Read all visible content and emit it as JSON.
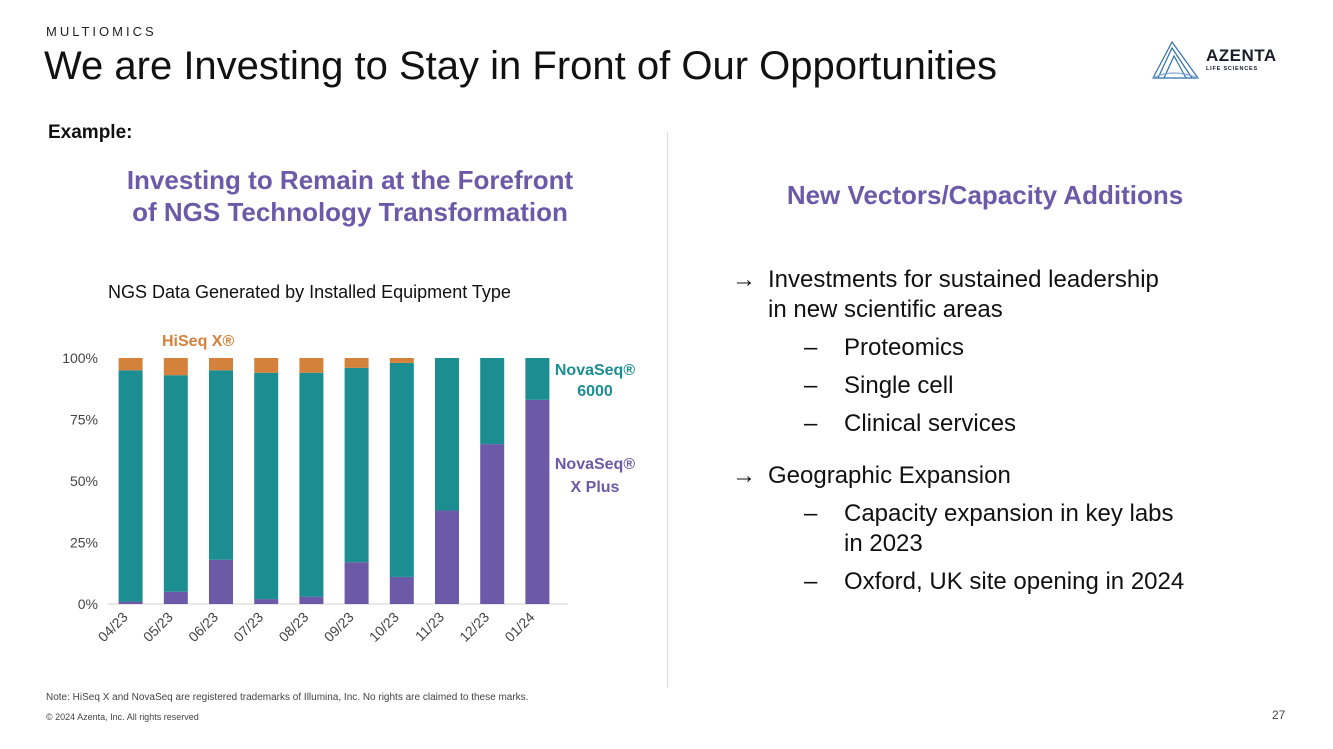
{
  "header": {
    "section": "MULTIOMICS",
    "title": "We are Investing to Stay in Front of Our Opportunities",
    "logo_text": "AZENTA",
    "logo_sub": "LIFE SCIENCES"
  },
  "left": {
    "example_label": "Example:",
    "heading_line1": "Investing to Remain at the Forefront",
    "heading_line2": "of NGS Technology Transformation"
  },
  "right": {
    "heading": "New Vectors/Capacity Additions",
    "arrow_glyph": "→",
    "dash_glyph": "–",
    "bullet1": {
      "line1": "Investments for sustained leadership",
      "line2": "in new scientific areas"
    },
    "sub1": [
      "Proteomics",
      "Single cell",
      "Clinical services"
    ],
    "bullet2": "Geographic Expansion",
    "sub2": [
      {
        "line1": "Capacity expansion in key labs",
        "line2": "in 2023"
      },
      {
        "line1": "Oxford, UK site opening in 2024",
        "line2": ""
      }
    ]
  },
  "footer": {
    "note": "Note: HiSeq X and NovaSeq are registered trademarks of Illumina, Inc.  No rights are claimed to these marks.",
    "copyright": "© 2024 Azenta, Inc.  All rights reserved",
    "page_number": "27"
  },
  "colors": {
    "title_purple": "#6c5aa8",
    "hiseq": "#d4813b",
    "novaseq6000": "#1c8e92",
    "novaseqx": "#6c5aa8"
  },
  "chart_data": {
    "type": "bar",
    "stacked": true,
    "title": "NGS Data Generated by Installed Equipment Type",
    "categories": [
      "04/23",
      "05/23",
      "06/23",
      "07/23",
      "08/23",
      "09/23",
      "10/23",
      "11/23",
      "12/23",
      "01/24"
    ],
    "series": [
      {
        "name": "NovaSeq® X Plus",
        "label_line1": "NovaSeq®",
        "label_line2": "X Plus",
        "color": "#6c5aa8",
        "values": [
          1,
          5,
          18,
          2,
          3,
          17,
          11,
          38,
          65,
          83
        ]
      },
      {
        "name": "NovaSeq® 6000",
        "label_line1": "NovaSeq®",
        "label_line2": "6000",
        "color": "#1c8e92",
        "values": [
          94,
          88,
          77,
          92,
          91,
          79,
          87,
          62,
          35,
          17
        ]
      },
      {
        "name": "HiSeq X®",
        "label_line1": "HiSeq X®",
        "color": "#d4813b",
        "values": [
          5,
          7,
          5,
          6,
          6,
          4,
          2,
          0,
          0,
          0
        ]
      }
    ],
    "y_ticks": [
      "0%",
      "25%",
      "50%",
      "75%",
      "100%"
    ],
    "ylim": [
      0,
      100
    ],
    "xlabel": "",
    "ylabel": ""
  }
}
